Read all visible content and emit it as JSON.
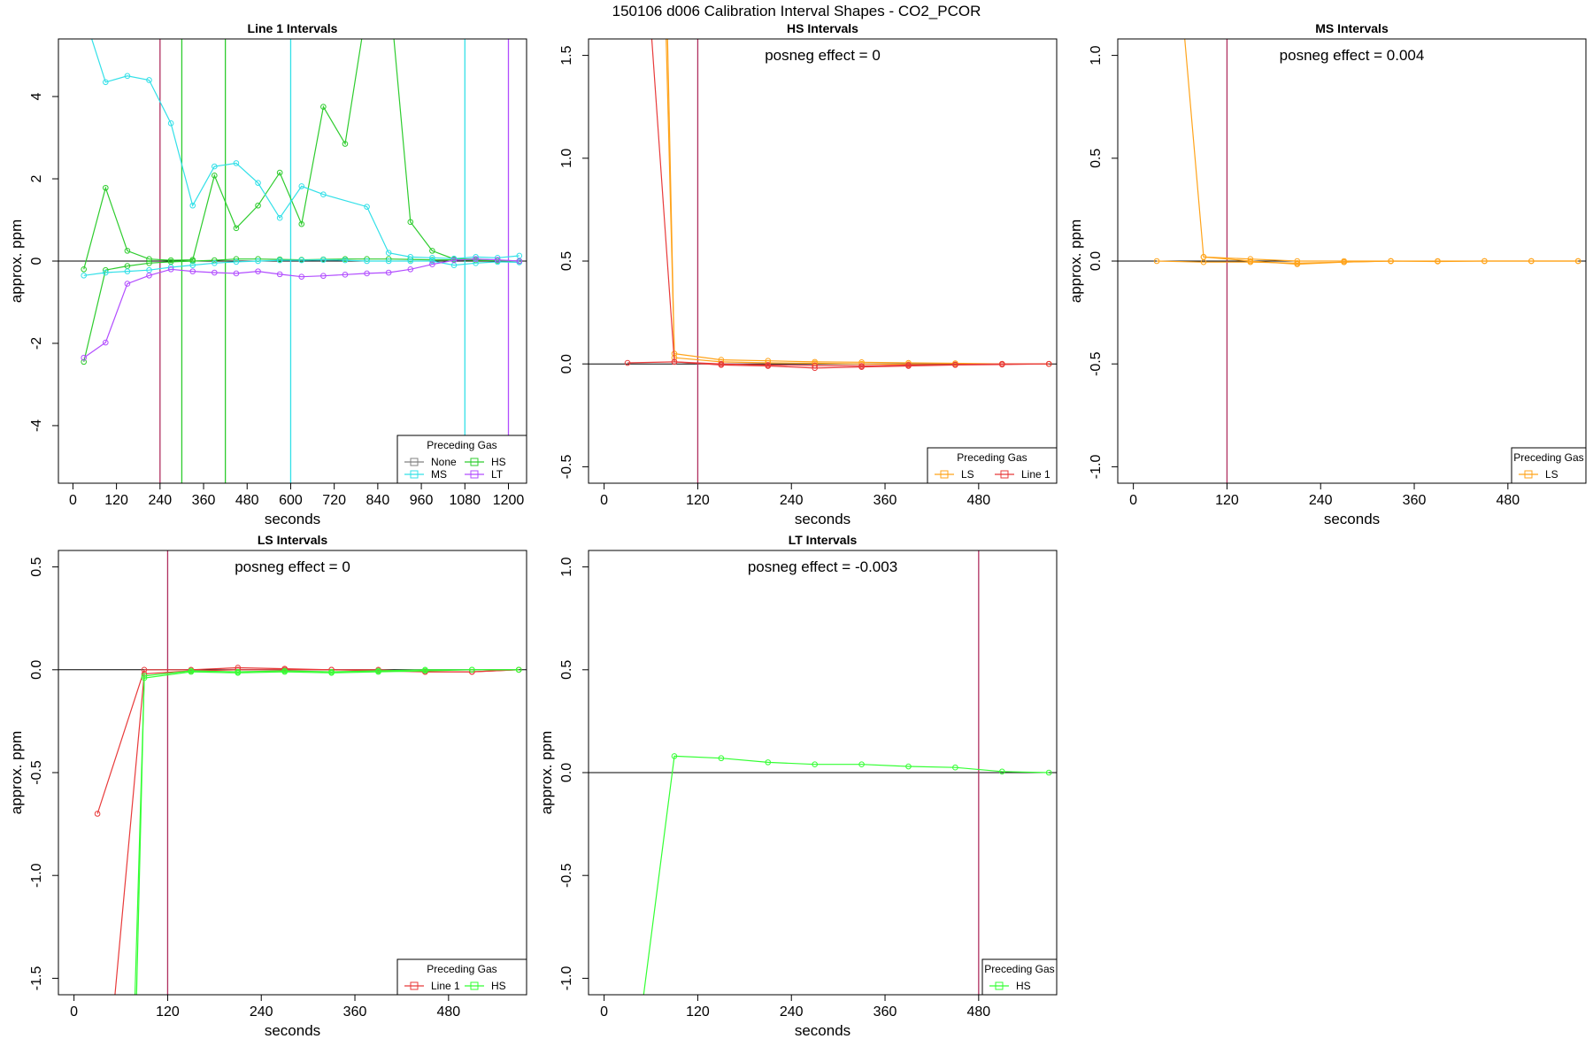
{
  "title": "150106  d006   Calibration Interval Shapes - CO2_PCOR",
  "colors": {
    "None": "#808080",
    "HS": "#2ecc2e",
    "HS_bright": "#33ff33",
    "MS": "#33e0e8",
    "LT": "#b24dff",
    "LS": "#ffa31a",
    "Line 1": "#e83a3a",
    "vline_dark": "#b03060"
  },
  "chart_data": [
    {
      "type": "line",
      "title": "Line 1 Intervals",
      "xlabel": "seconds",
      "ylabel": "approx. ppm",
      "xlim": [
        -40,
        1250
      ],
      "ylim": [
        -5.4,
        5.4
      ],
      "xticks": [
        "0",
        "120",
        "240",
        "360",
        "480",
        "600",
        "720",
        "840",
        "960",
        "1080",
        "1200"
      ],
      "xtick_values": [
        0,
        120,
        240,
        360,
        480,
        600,
        720,
        840,
        960,
        1080,
        1200
      ],
      "yticks": [
        "-4",
        "-2",
        "0",
        "2",
        "4"
      ],
      "ytick_values": [
        -4,
        -2,
        0,
        2,
        4
      ],
      "vlines": [
        {
          "x": 240,
          "color": "#b03060"
        },
        {
          "x": 300,
          "color": "#2ecc2e"
        },
        {
          "x": 420,
          "color": "#2ecc2e"
        },
        {
          "x": 600,
          "color": "#33e0e8"
        },
        {
          "x": 1080,
          "color": "#33e0e8"
        },
        {
          "x": 1200,
          "color": "#b24dff"
        }
      ],
      "legend": {
        "title": "Preceding Gas",
        "placement": "bottom-right",
        "entries": [
          "None",
          "HS",
          "MS",
          "LT"
        ],
        "colors": [
          "#808080",
          "#2ecc2e",
          "#33e0e8",
          "#b24dff"
        ],
        "columns": 2
      },
      "series": [
        {
          "name": "HS",
          "color": "#2ecc2e",
          "x": [
            30,
            90,
            150,
            210,
            270,
            330,
            390,
            450,
            510,
            570,
            630,
            690,
            750,
            810,
            870,
            930,
            990,
            1050,
            1110,
            1170,
            1230
          ],
          "y": [
            -0.2,
            1.78,
            0.25,
            0.05,
            0.02,
            0.03,
            2.08,
            0.8,
            1.35,
            2.15,
            0.9,
            3.75,
            2.85,
            6.2,
            6.8,
            0.95,
            0.25,
            0.05,
            0.05,
            0.02,
            0.0
          ]
        },
        {
          "name": "HS",
          "color": "#2ecc2e",
          "x": [
            30,
            90,
            150,
            210,
            270,
            330,
            390,
            450,
            510,
            570,
            630,
            690,
            750,
            810,
            870,
            930,
            990,
            1050,
            1110,
            1170,
            1230
          ],
          "y": [
            -2.45,
            -0.22,
            -0.12,
            -0.05,
            -0.02,
            0.0,
            0.02,
            0.05,
            0.05,
            0.04,
            0.03,
            0.04,
            0.05,
            0.05,
            0.05,
            0.04,
            0.03,
            0.03,
            0.02,
            0.01,
            0.0
          ]
        },
        {
          "name": "MS",
          "color": "#33e0e8",
          "x": [
            30,
            90,
            150,
            210,
            270,
            330,
            390,
            450,
            510,
            570,
            630,
            690,
            810,
            870,
            930,
            990,
            1050,
            1110,
            1170,
            1230
          ],
          "y": [
            6.0,
            4.35,
            4.5,
            4.4,
            3.35,
            1.35,
            2.3,
            2.38,
            1.9,
            1.05,
            1.82,
            1.62,
            1.32,
            0.2,
            0.1,
            0.08,
            0.06,
            0.1,
            0.08,
            0.13
          ]
        },
        {
          "name": "MS",
          "color": "#33e0e8",
          "x": [
            30,
            90,
            150,
            210,
            270,
            330,
            390,
            450,
            510,
            570,
            630,
            690,
            750,
            810,
            870,
            930,
            990,
            1050,
            1110,
            1170,
            1230
          ],
          "y": [
            -0.35,
            -0.28,
            -0.25,
            -0.22,
            -0.15,
            -0.1,
            -0.05,
            -0.02,
            0.0,
            0.02,
            0.02,
            0.03,
            0.02,
            0.0,
            0.0,
            0.0,
            0.0,
            -0.1,
            -0.05,
            -0.02,
            -0.03
          ]
        },
        {
          "name": "LT",
          "color": "#b24dff",
          "x": [
            30,
            90,
            150,
            210,
            270,
            330,
            390,
            450,
            510,
            570,
            630,
            690,
            750,
            810,
            870,
            930,
            990,
            1050,
            1110,
            1170,
            1230
          ],
          "y": [
            -2.35,
            -1.98,
            -0.55,
            -0.35,
            -0.2,
            -0.25,
            -0.28,
            -0.3,
            -0.25,
            -0.32,
            -0.38,
            -0.36,
            -0.33,
            -0.3,
            -0.28,
            -0.2,
            -0.08,
            0.02,
            0.05,
            0.03,
            0.0
          ]
        }
      ]
    },
    {
      "type": "line",
      "title": "HS Intervals",
      "annotation": "posneg effect = 0",
      "xlabel": "seconds",
      "ylabel": "",
      "xlim": [
        -20,
        580
      ],
      "ylim": [
        -0.58,
        1.58
      ],
      "xticks": [
        "0",
        "120",
        "240",
        "360",
        "480"
      ],
      "xtick_values": [
        0,
        120,
        240,
        360,
        480
      ],
      "yticks": [
        "-0.5",
        "0.0",
        "0.5",
        "1.0",
        "1.5"
      ],
      "ytick_values": [
        -0.5,
        0.0,
        0.5,
        1.0,
        1.5
      ],
      "vlines": [
        {
          "x": 120,
          "color": "#b03060"
        }
      ],
      "legend": {
        "title": "Preceding Gas",
        "placement": "bottom-right",
        "entries": [
          "LS",
          "Line 1"
        ],
        "colors": [
          "#ffa31a",
          "#e83a3a"
        ],
        "columns": 2
      },
      "series": [
        {
          "name": "LS",
          "color": "#ffa31a",
          "x": [
            78,
            90,
            150,
            210,
            270,
            330,
            390,
            450,
            510,
            570
          ],
          "y": [
            1.8,
            0.05,
            0.02,
            0.015,
            0.01,
            0.008,
            0.005,
            0.003,
            0.0,
            0.0
          ]
        },
        {
          "name": "LS",
          "color": "#ffa31a",
          "x": [
            80,
            90,
            150,
            210,
            270,
            330,
            390,
            450,
            510,
            570
          ],
          "y": [
            1.8,
            0.03,
            0.01,
            0.005,
            0.003,
            0.0,
            -0.002,
            -0.003,
            0.0,
            0.0
          ]
        },
        {
          "name": "Line 1",
          "color": "#e83a3a",
          "x": [
            30,
            90,
            150,
            210,
            270,
            330,
            390,
            450,
            510,
            570
          ],
          "y": [
            0.005,
            0.01,
            0.0,
            -0.005,
            -0.008,
            -0.01,
            -0.005,
            -0.003,
            0.0,
            0.0
          ]
        },
        {
          "name": "Line 1",
          "color": "#e83a3a",
          "x": [
            57,
            90,
            150,
            210,
            270,
            330,
            390,
            450,
            510,
            570
          ],
          "y": [
            1.8,
            0.01,
            -0.005,
            -0.01,
            -0.02,
            -0.015,
            -0.01,
            -0.005,
            -0.003,
            0.0
          ]
        }
      ]
    },
    {
      "type": "line",
      "title": "MS Intervals",
      "annotation": "posneg effect = 0.004",
      "xlabel": "seconds",
      "ylabel": "approx. ppm",
      "xlim": [
        -20,
        580
      ],
      "ylim": [
        -1.08,
        1.08
      ],
      "xticks": [
        "0",
        "120",
        "240",
        "360",
        "480"
      ],
      "xtick_values": [
        0,
        120,
        240,
        360,
        480
      ],
      "yticks": [
        "-1.0",
        "-0.5",
        "0.0",
        "0.5",
        "1.0"
      ],
      "ytick_values": [
        -1.0,
        -0.5,
        0.0,
        0.5,
        1.0
      ],
      "vlines": [
        {
          "x": 120,
          "color": "#b03060"
        }
      ],
      "legend": {
        "title": "Preceding Gas",
        "placement": "bottom-right",
        "entries": [
          "LS"
        ],
        "colors": [
          "#ffa31a"
        ],
        "columns": 1
      },
      "series": [
        {
          "name": "LS",
          "color": "#ffa31a",
          "x": [
            30,
            90,
            150,
            210,
            270,
            330,
            390,
            450,
            510,
            570
          ],
          "y": [
            0.0,
            -0.005,
            -0.005,
            -0.01,
            -0.005,
            0.0,
            -0.002,
            0.0,
            0.0,
            0.0
          ]
        },
        {
          "name": "LS",
          "color": "#ffa31a",
          "x": [
            65,
            90,
            150,
            210,
            270,
            330,
            390,
            450,
            510,
            570
          ],
          "y": [
            1.12,
            0.02,
            0.01,
            0.0,
            0.0,
            0.0,
            0.0,
            0.0,
            0.0,
            0.0
          ]
        },
        {
          "name": "LS",
          "color": "#ffa31a",
          "x": [
            90,
            150,
            210,
            270,
            330
          ],
          "y": [
            0.02,
            0.0,
            -0.015,
            -0.005,
            0.0
          ]
        }
      ]
    },
    {
      "type": "line",
      "title": "LS Intervals",
      "annotation": "posneg effect = 0",
      "xlabel": "seconds",
      "ylabel": "approx. ppm",
      "xlim": [
        -20,
        580
      ],
      "ylim": [
        -1.58,
        0.58
      ],
      "xticks": [
        "0",
        "120",
        "240",
        "360",
        "480"
      ],
      "xtick_values": [
        0,
        120,
        240,
        360,
        480
      ],
      "yticks": [
        "-1.5",
        "-1.0",
        "-0.5",
        "0.0",
        "0.5"
      ],
      "ytick_values": [
        -1.5,
        -1.0,
        -0.5,
        0.0,
        0.5
      ],
      "vlines": [
        {
          "x": 120,
          "color": "#b03060"
        }
      ],
      "legend": {
        "title": "Preceding Gas",
        "placement": "bottom-right",
        "entries": [
          "Line 1",
          "HS"
        ],
        "colors": [
          "#e83a3a",
          "#33ff33"
        ],
        "columns": 2
      },
      "series": [
        {
          "name": "Line 1",
          "color": "#e83a3a",
          "x": [
            30,
            90,
            150,
            210,
            270,
            330,
            390,
            450,
            510,
            570
          ],
          "y": [
            -0.7,
            0.0,
            0.0,
            0.01,
            0.005,
            0.0,
            0.0,
            -0.01,
            -0.01,
            0.0
          ]
        },
        {
          "name": "Line 1",
          "color": "#e83a3a",
          "x": [
            52,
            90,
            150,
            210,
            270,
            330,
            390,
            450,
            510,
            570
          ],
          "y": [
            -1.6,
            -0.02,
            -0.005,
            0.0,
            0.0,
            0.0,
            -0.005,
            -0.01,
            -0.01,
            0.0
          ]
        },
        {
          "name": "HS",
          "color": "#33ff33",
          "x": [
            78,
            90,
            150,
            210,
            270,
            330,
            390,
            450,
            510,
            570
          ],
          "y": [
            -1.6,
            -0.04,
            -0.01,
            -0.015,
            -0.01,
            -0.015,
            -0.01,
            -0.005,
            0.0,
            0.0
          ]
        },
        {
          "name": "HS",
          "color": "#33ff33",
          "x": [
            80,
            90,
            150,
            210,
            270,
            330,
            390,
            450,
            510,
            570
          ],
          "y": [
            -1.6,
            -0.03,
            -0.005,
            -0.01,
            -0.005,
            -0.01,
            -0.005,
            0.0,
            0.0,
            0.0
          ]
        }
      ]
    },
    {
      "type": "line",
      "title": "LT Intervals",
      "annotation": "posneg effect = -0.003",
      "xlabel": "seconds",
      "ylabel": "approx. ppm",
      "xlim": [
        -20,
        580
      ],
      "ylim": [
        -1.08,
        1.08
      ],
      "xticks": [
        "0",
        "120",
        "240",
        "360",
        "480"
      ],
      "xtick_values": [
        0,
        120,
        240,
        360,
        480
      ],
      "yticks": [
        "-1.0",
        "-0.5",
        "0.0",
        "0.5",
        "1.0"
      ],
      "ytick_values": [
        -1.0,
        -0.5,
        0.0,
        0.5,
        1.0
      ],
      "vlines": [
        {
          "x": 480,
          "color": "#b03060"
        }
      ],
      "legend": {
        "title": "Preceding Gas",
        "placement": "bottom-right",
        "entries": [
          "HS"
        ],
        "colors": [
          "#33ff33"
        ],
        "columns": 1
      },
      "series": [
        {
          "name": "HS",
          "color": "#33ff33",
          "x": [
            50,
            90,
            150,
            210,
            270,
            330,
            390,
            450,
            510,
            570
          ],
          "y": [
            -1.1,
            0.08,
            0.07,
            0.05,
            0.04,
            0.04,
            0.03,
            0.025,
            0.005,
            0.0
          ]
        }
      ]
    }
  ]
}
